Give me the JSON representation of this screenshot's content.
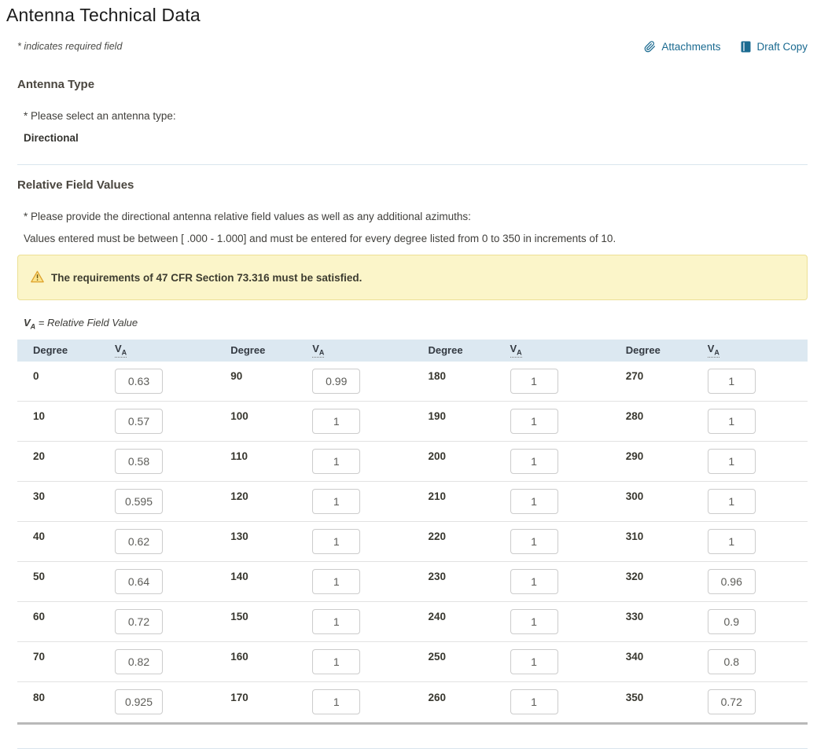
{
  "page": {
    "title": "Antenna Technical Data",
    "required_note": "* indicates required field"
  },
  "toolbar": {
    "attachments": "Attachments",
    "draft_copy": "Draft Copy"
  },
  "antenna_type": {
    "heading": "Antenna Type",
    "prompt": "* Please select an antenna type:",
    "value": "Directional"
  },
  "relative_field": {
    "heading": "Relative Field Values",
    "prompt": "* Please provide the directional antenna relative field values as well as any additional azimuths:",
    "instructions": "Values entered must be between [ .000 - 1.000] and must be entered for every degree listed from 0 to 350 in increments of 10.",
    "warning": "The requirements of 47 CFR Section 73.316 must be satisfied.",
    "legend": {
      "symbol": "V",
      "symbol_sub": "A",
      "text": "= Relative Field Value"
    },
    "table": {
      "header": {
        "degree": "Degree",
        "va_symbol": "V",
        "va_sub": "A"
      },
      "rows": [
        {
          "cells": [
            {
              "degree": "0",
              "va": "0.63"
            },
            {
              "degree": "90",
              "va": "0.99"
            },
            {
              "degree": "180",
              "va": "1"
            },
            {
              "degree": "270",
              "va": "1"
            }
          ]
        },
        {
          "cells": [
            {
              "degree": "10",
              "va": "0.57"
            },
            {
              "degree": "100",
              "va": "1"
            },
            {
              "degree": "190",
              "va": "1"
            },
            {
              "degree": "280",
              "va": "1"
            }
          ]
        },
        {
          "cells": [
            {
              "degree": "20",
              "va": "0.58"
            },
            {
              "degree": "110",
              "va": "1"
            },
            {
              "degree": "200",
              "va": "1"
            },
            {
              "degree": "290",
              "va": "1"
            }
          ]
        },
        {
          "cells": [
            {
              "degree": "30",
              "va": "0.595"
            },
            {
              "degree": "120",
              "va": "1"
            },
            {
              "degree": "210",
              "va": "1"
            },
            {
              "degree": "300",
              "va": "1"
            }
          ]
        },
        {
          "cells": [
            {
              "degree": "40",
              "va": "0.62"
            },
            {
              "degree": "130",
              "va": "1"
            },
            {
              "degree": "220",
              "va": "1"
            },
            {
              "degree": "310",
              "va": "1"
            }
          ]
        },
        {
          "cells": [
            {
              "degree": "50",
              "va": "0.64"
            },
            {
              "degree": "140",
              "va": "1"
            },
            {
              "degree": "230",
              "va": "1"
            },
            {
              "degree": "320",
              "va": "0.96"
            }
          ]
        },
        {
          "cells": [
            {
              "degree": "60",
              "va": "0.72"
            },
            {
              "degree": "150",
              "va": "1"
            },
            {
              "degree": "240",
              "va": "1"
            },
            {
              "degree": "330",
              "va": "0.9"
            }
          ]
        },
        {
          "cells": [
            {
              "degree": "70",
              "va": "0.82"
            },
            {
              "degree": "160",
              "va": "1"
            },
            {
              "degree": "250",
              "va": "1"
            },
            {
              "degree": "340",
              "va": "0.8"
            }
          ]
        },
        {
          "cells": [
            {
              "degree": "80",
              "va": "0.925"
            },
            {
              "degree": "170",
              "va": "1"
            },
            {
              "degree": "260",
              "va": "1"
            },
            {
              "degree": "350",
              "va": "0.72"
            }
          ]
        }
      ]
    }
  },
  "colors": {
    "link": "#1a6a90",
    "table_header_bg": "#dce8f1",
    "warning_bg": "#fbf5c9",
    "warning_border": "#ece095",
    "warning_icon": "#dda12b",
    "divider": "#d9e5ee"
  }
}
